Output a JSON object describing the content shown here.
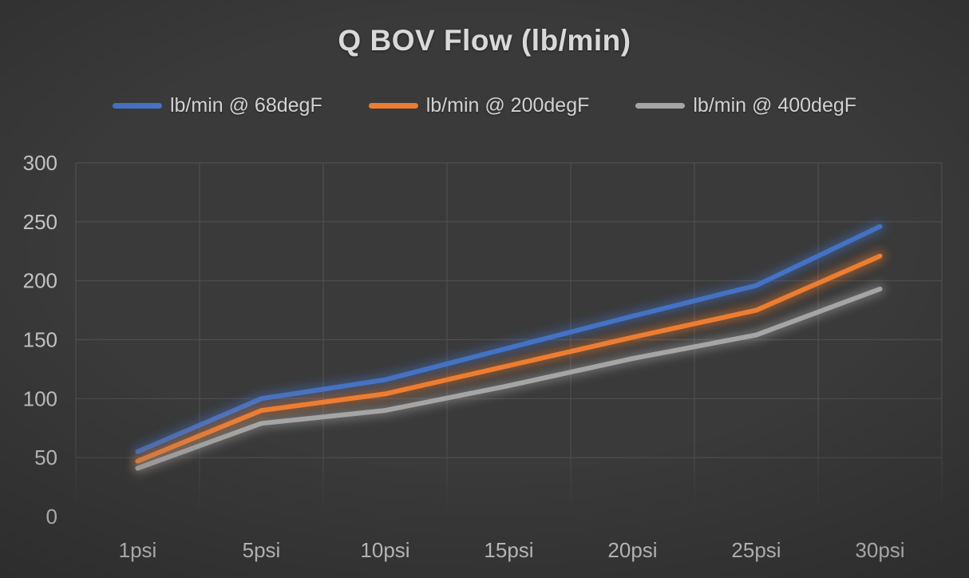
{
  "chart_data": {
    "type": "line",
    "title": "Q BOV Flow (lb/min)",
    "categories": [
      "1psi",
      "5psi",
      "10psi",
      "15psi",
      "20psi",
      "25psi",
      "30psi"
    ],
    "series": [
      {
        "name": "lb/min @ 68degF",
        "color": "#4472C4",
        "values": [
          55,
          100,
          116,
          143,
          170,
          196,
          246
        ]
      },
      {
        "name": "lb/min @ 200degF",
        "color": "#ED7D31",
        "values": [
          47,
          90,
          104,
          128,
          152,
          175,
          221
        ]
      },
      {
        "name": "lb/min @ 400degF",
        "color": "#A5A5A5",
        "values": [
          41,
          79,
          90,
          111,
          134,
          154,
          193
        ]
      }
    ],
    "xlabel": "",
    "ylabel": "",
    "ylim": [
      0,
      300
    ],
    "ytick_step": 50,
    "yticks": [
      "0",
      "50",
      "100",
      "150",
      "200",
      "250",
      "300"
    ],
    "grid": "on",
    "legend_position": "top",
    "style": {
      "background": "#3A3A3A",
      "grid_color": "#535353",
      "tick_text_color": "#c7c7c7",
      "title_color": "#D9D9D9",
      "line_width": 6,
      "glow": true
    }
  }
}
